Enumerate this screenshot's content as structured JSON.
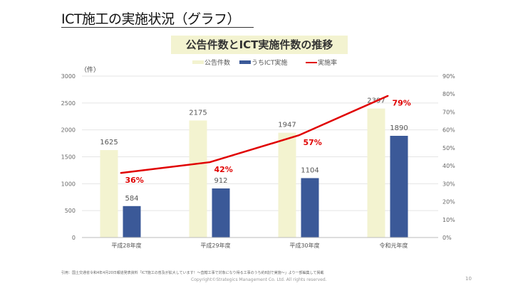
{
  "slide": {
    "title": "ICT施工の実施状況（グラフ）",
    "footnote": "引用：国土交通省令和4年4月20日報道発表資料「ICT施工の普及が拡大しています！～直轄工事で対象になり得る工事のうち約8割で実施～」より一部編集して掲載",
    "copyright": "Copyright©Strategics Management Co. Ltd. All rights reserved.",
    "page": "10"
  },
  "chart_data": {
    "type": "bar+line",
    "title": "公告件数とICT実施件数の推移",
    "ylabel": "（件）",
    "categories": [
      "平成28年度",
      "平成29年度",
      "平成30年度",
      "令和元年度"
    ],
    "ylim": [
      0,
      3000
    ],
    "yticks": [
      "0",
      "500",
      "1000",
      "1500",
      "2000",
      "2500",
      "3000"
    ],
    "y2lim": [
      0,
      90
    ],
    "y2ticks": [
      "0%",
      "10%",
      "20%",
      "30%",
      "40%",
      "50%",
      "60%",
      "70%",
      "80%",
      "90%"
    ],
    "grid": true,
    "legend_position": "top",
    "series": [
      {
        "name": "公告件数",
        "type": "bar",
        "color": "#f3f3d0",
        "values": [
          1625,
          2175,
          1947,
          2397
        ]
      },
      {
        "name": "うちICT実施",
        "type": "bar",
        "color": "#3b5998",
        "values": [
          584,
          912,
          1104,
          1890
        ]
      },
      {
        "name": "実施率",
        "type": "line",
        "color": "#e00000",
        "values": [
          36,
          42,
          57,
          79
        ],
        "labels": [
          "36%",
          "42%",
          "57%",
          "79%"
        ]
      }
    ]
  }
}
